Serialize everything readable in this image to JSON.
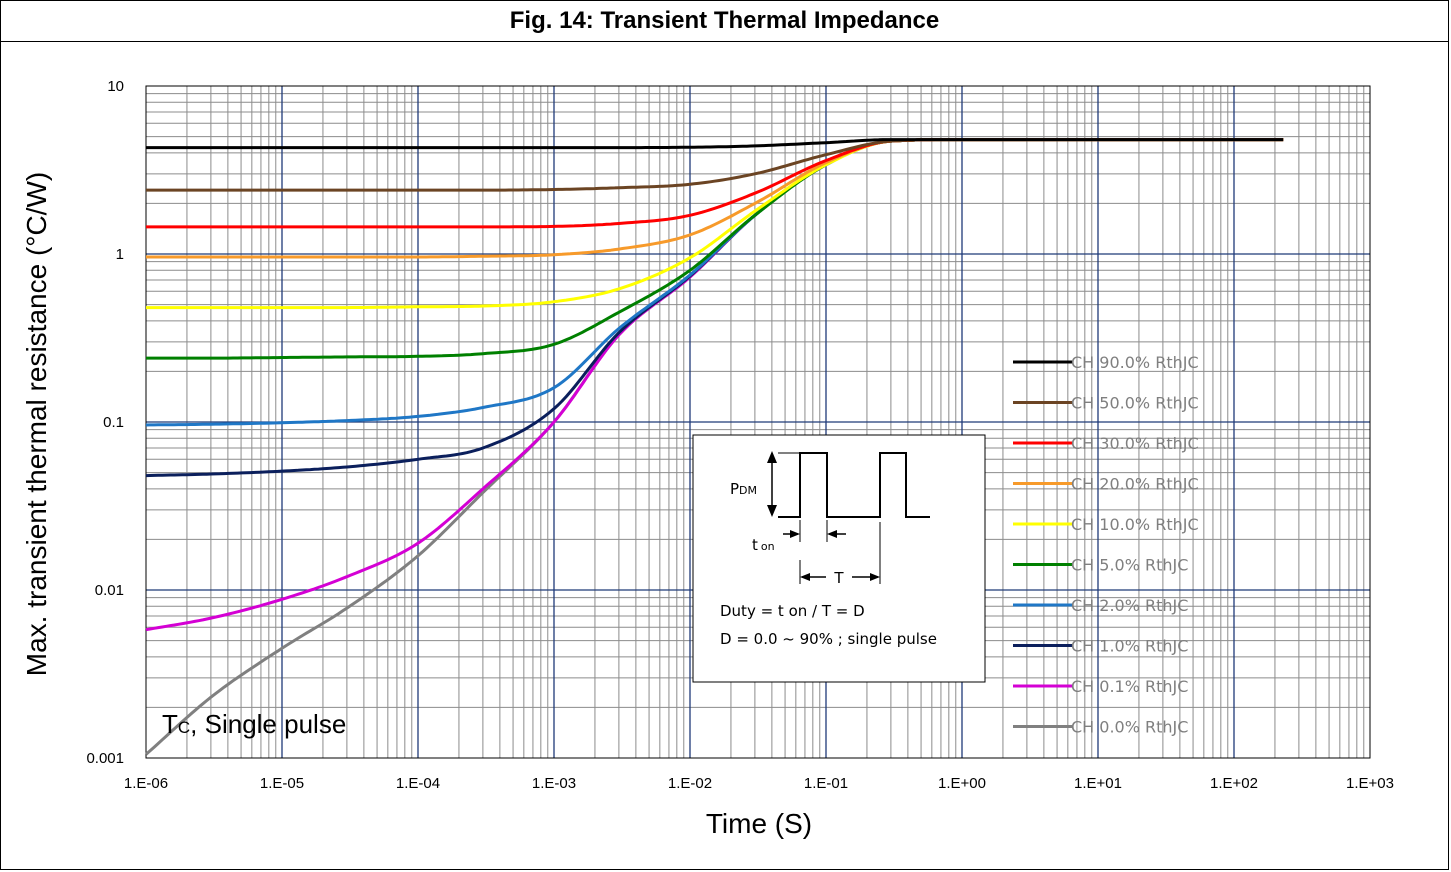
{
  "chart_data": {
    "type": "line",
    "title": "Fig. 14: Transient Thermal Impedance",
    "xlabel": "Time (S)",
    "ylabel": "Max. transient thermal resistance (°C/W)",
    "xscale": "log",
    "yscale": "log",
    "xlim": [
      1e-06,
      1000
    ],
    "ylim": [
      0.001,
      10
    ],
    "grid": true,
    "legend_position": "right",
    "x_tick_labels": [
      "1.E-06",
      "1.E-05",
      "1.E-04",
      "1.E-03",
      "1.E-02",
      "1.E-01",
      "1.E+00",
      "1.E+01",
      "1.E+02",
      "1.E+03"
    ],
    "y_tick_labels": [
      "10",
      "1",
      "0.1",
      "0.01",
      "0.001"
    ],
    "x": [
      1e-06,
      3e-06,
      1e-05,
      3e-05,
      0.0001,
      0.0003,
      0.001,
      0.003,
      0.01,
      0.03,
      0.1,
      0.3,
      1,
      10,
      100,
      230
    ],
    "series": [
      {
        "name": "CH 90.0% RthJC",
        "color": "#000000",
        "values": [
          4.3,
          4.3,
          4.3,
          4.3,
          4.3,
          4.3,
          4.3,
          4.3,
          4.32,
          4.4,
          4.6,
          4.8,
          4.8,
          4.8,
          4.8,
          4.8
        ]
      },
      {
        "name": "CH 50.0% RthJC",
        "color": "#6b4423",
        "values": [
          2.4,
          2.4,
          2.4,
          2.4,
          2.4,
          2.4,
          2.42,
          2.48,
          2.6,
          3.0,
          3.9,
          4.7,
          4.8,
          4.8,
          4.8,
          4.8
        ]
      },
      {
        "name": "CH 30.0% RthJC",
        "color": "#ff0000",
        "values": [
          1.45,
          1.45,
          1.45,
          1.45,
          1.45,
          1.45,
          1.46,
          1.52,
          1.7,
          2.3,
          3.6,
          4.7,
          4.8,
          4.8,
          4.8,
          4.8
        ]
      },
      {
        "name": "CH 20.0% RthJC",
        "color": "#f79a2a",
        "values": [
          0.96,
          0.96,
          0.96,
          0.96,
          0.96,
          0.97,
          0.99,
          1.07,
          1.3,
          2.0,
          3.5,
          4.7,
          4.8,
          4.8,
          4.8,
          4.8
        ]
      },
      {
        "name": "CH 10.0% RthJC",
        "color": "#ffff00",
        "values": [
          0.48,
          0.48,
          0.48,
          0.48,
          0.485,
          0.49,
          0.52,
          0.62,
          0.95,
          1.8,
          3.4,
          4.7,
          4.8,
          4.8,
          4.8,
          4.8
        ]
      },
      {
        "name": "CH 5.0% RthJC",
        "color": "#008000",
        "values": [
          0.24,
          0.24,
          0.242,
          0.244,
          0.246,
          0.255,
          0.29,
          0.45,
          0.8,
          1.7,
          3.4,
          4.7,
          4.8,
          4.8,
          4.8,
          4.8
        ]
      },
      {
        "name": "CH 2.0% RthJC",
        "color": "#1f77c6",
        "values": [
          0.096,
          0.097,
          0.099,
          0.102,
          0.108,
          0.122,
          0.16,
          0.36,
          0.75,
          1.7,
          3.4,
          4.7,
          4.8,
          4.8,
          4.8,
          4.8
        ]
      },
      {
        "name": "CH 1.0% RthJC",
        "color": "#0b1f5c",
        "values": [
          0.048,
          0.049,
          0.051,
          0.054,
          0.06,
          0.07,
          0.12,
          0.34,
          0.74,
          1.7,
          3.4,
          4.7,
          4.8,
          4.8,
          4.8,
          4.8
        ]
      },
      {
        "name": "CH 0.1% RthJC",
        "color": "#d400d4",
        "values": [
          0.0058,
          0.0068,
          0.0088,
          0.012,
          0.019,
          0.04,
          0.1,
          0.33,
          0.73,
          1.7,
          3.4,
          4.7,
          4.8,
          4.8,
          4.8,
          4.8
        ]
      },
      {
        "name": "CH 0.0% RthJC",
        "color": "#808080",
        "values": [
          0.00105,
          0.0023,
          0.0045,
          0.0078,
          0.016,
          0.038,
          0.1,
          0.33,
          0.73,
          1.7,
          3.4,
          4.7,
          4.8,
          4.8,
          4.8,
          4.8
        ]
      }
    ],
    "annotations": {
      "note_prefix": "T",
      "note_sub": "C",
      "note_suffix": ", Single pulse"
    },
    "inset": {
      "p_label": "P",
      "p_sub": "DM",
      "ton_label": "t",
      "ton_sub": "on",
      "t_label": "T",
      "duty_line": "Duty = t on / T = D",
      "range_line": "D = 0.0 ~ 90% ; single pulse"
    }
  }
}
